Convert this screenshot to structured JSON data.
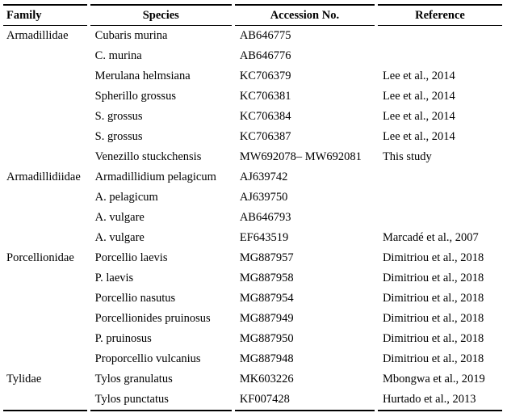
{
  "table": {
    "headers": {
      "family": "Family",
      "species": "Species",
      "accession": "Accession No.",
      "reference": "Reference"
    },
    "rows": [
      {
        "family": "Armadillidae",
        "species": "Cubaris murina",
        "accession": "AB646775",
        "reference": ""
      },
      {
        "family": "",
        "species": "C. murina",
        "accession": "AB646776",
        "reference": ""
      },
      {
        "family": "",
        "species": "Merulana helmsiana",
        "accession": "KC706379",
        "reference": "Lee et al., 2014"
      },
      {
        "family": "",
        "species": "Spherillo grossus",
        "accession": "KC706381",
        "reference": "Lee et al., 2014"
      },
      {
        "family": "",
        "species": "S. grossus",
        "accession": "KC706384",
        "reference": "Lee et al., 2014"
      },
      {
        "family": "",
        "species": "S. grossus",
        "accession": "KC706387",
        "reference": "Lee et al., 2014"
      },
      {
        "family": "",
        "species": "Venezillo stuckchensis",
        "accession": "MW692078– MW692081",
        "reference": "This study"
      },
      {
        "family": "Armadillidiidae",
        "species": "Armadillidium pelagicum",
        "accession": "AJ639742",
        "reference": ""
      },
      {
        "family": "",
        "species": "A. pelagicum",
        "accession": "AJ639750",
        "reference": ""
      },
      {
        "family": "",
        "species": "A. vulgare",
        "accession": "AB646793",
        "reference": ""
      },
      {
        "family": "",
        "species": "A. vulgare",
        "accession": "EF643519",
        "reference": "Marcadé et al., 2007"
      },
      {
        "family": "Porcellionidae",
        "species": "Porcellio laevis",
        "accession": "MG887957",
        "reference": "Dimitriou et al., 2018"
      },
      {
        "family": "",
        "species": "P. laevis",
        "accession": "MG887958",
        "reference": "Dimitriou et al., 2018"
      },
      {
        "family": "",
        "species": "Porcellio nasutus",
        "accession": "MG887954",
        "reference": "Dimitriou et al., 2018"
      },
      {
        "family": "",
        "species": "Porcellionides pruinosus",
        "accession": "MG887949",
        "reference": "Dimitriou et al., 2018"
      },
      {
        "family": "",
        "species": "P. pruinosus",
        "accession": "MG887950",
        "reference": "Dimitriou et al., 2018"
      },
      {
        "family": "",
        "species": "Proporcellio vulcanius",
        "accession": "MG887948",
        "reference": "Dimitriou et al., 2018"
      },
      {
        "family": "Tylidae",
        "species": "Tylos granulatus",
        "accession": "MK603226",
        "reference": "Mbongwa et al., 2019"
      },
      {
        "family": "",
        "species": "Tylos punctatus",
        "accession": "KF007428",
        "reference": "Hurtado et al., 2013"
      }
    ]
  }
}
